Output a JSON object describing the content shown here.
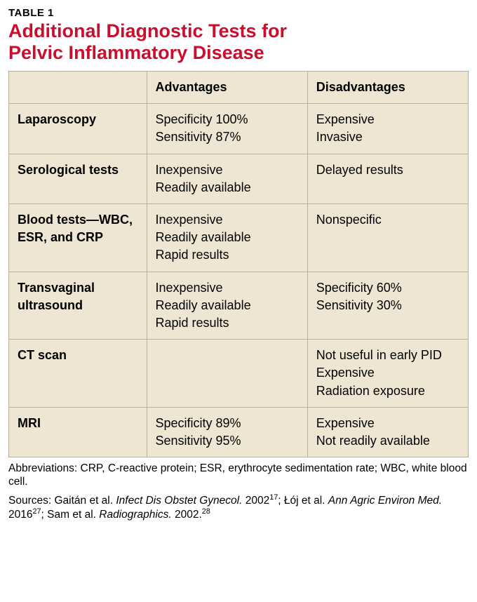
{
  "header": {
    "label": "TABLE 1",
    "title_line1": "Additional Diagnostic Tests for",
    "title_line2": "Pelvic Inflammatory Disease"
  },
  "table": {
    "columns": [
      "",
      "Advantages",
      "Disadvantages"
    ],
    "rows": [
      {
        "name": "Laparoscopy",
        "advantages": [
          "Specificity 100%",
          "Sensitivity 87%"
        ],
        "disadvantages": [
          "Expensive",
          "Invasive"
        ]
      },
      {
        "name": "Serological tests",
        "advantages": [
          "Inexpensive",
          "Readily available"
        ],
        "disadvantages": [
          "Delayed results"
        ]
      },
      {
        "name": "Blood tests—WBC, ESR, and CRP",
        "advantages": [
          "Inexpensive",
          "Readily available",
          "Rapid results"
        ],
        "disadvantages": [
          "Nonspecific"
        ]
      },
      {
        "name": "Transvaginal ultrasound",
        "advantages": [
          "Inexpensive",
          "Readily available",
          "Rapid results"
        ],
        "disadvantages": [
          "Specificity 60%",
          "Sensitivity 30%"
        ]
      },
      {
        "name": "CT scan",
        "advantages": [],
        "disadvantages": [
          "Not useful in early PID",
          "Expensive",
          "Radiation exposure"
        ]
      },
      {
        "name": "MRI",
        "advantages": [
          "Specificity 89%",
          "Sensitivity 95%"
        ],
        "disadvantages": [
          "Expensive",
          "Not readily available"
        ]
      }
    ]
  },
  "footnotes": {
    "abbrev": "Abbreviations: CRP, C-reactive protein; ESR, erythrocyte sedimentation rate; WBC, white blood cell.",
    "sources_prefix": "Sources: Gaitán et al. ",
    "src1_italic": "Infect Dis Obstet Gynecol.",
    "src1_tail": " 2002",
    "src1_sup": "17",
    "sep1": "; Łój et al. ",
    "src2_italic": "Ann Agric Environ Med.",
    "src2_tail": " 2016",
    "src2_sup": "27",
    "sep2": "; Sam et al. ",
    "src3_italic": "Radiographics.",
    "src3_tail": " 2002.",
    "src3_sup": "28"
  },
  "style": {
    "title_color": "#c8102e",
    "table_bg": "#eee6d3",
    "border_color": "#b8b09a",
    "body_fontsize": 18,
    "title_fontsize": 27,
    "footnote_fontsize": 15.5
  }
}
